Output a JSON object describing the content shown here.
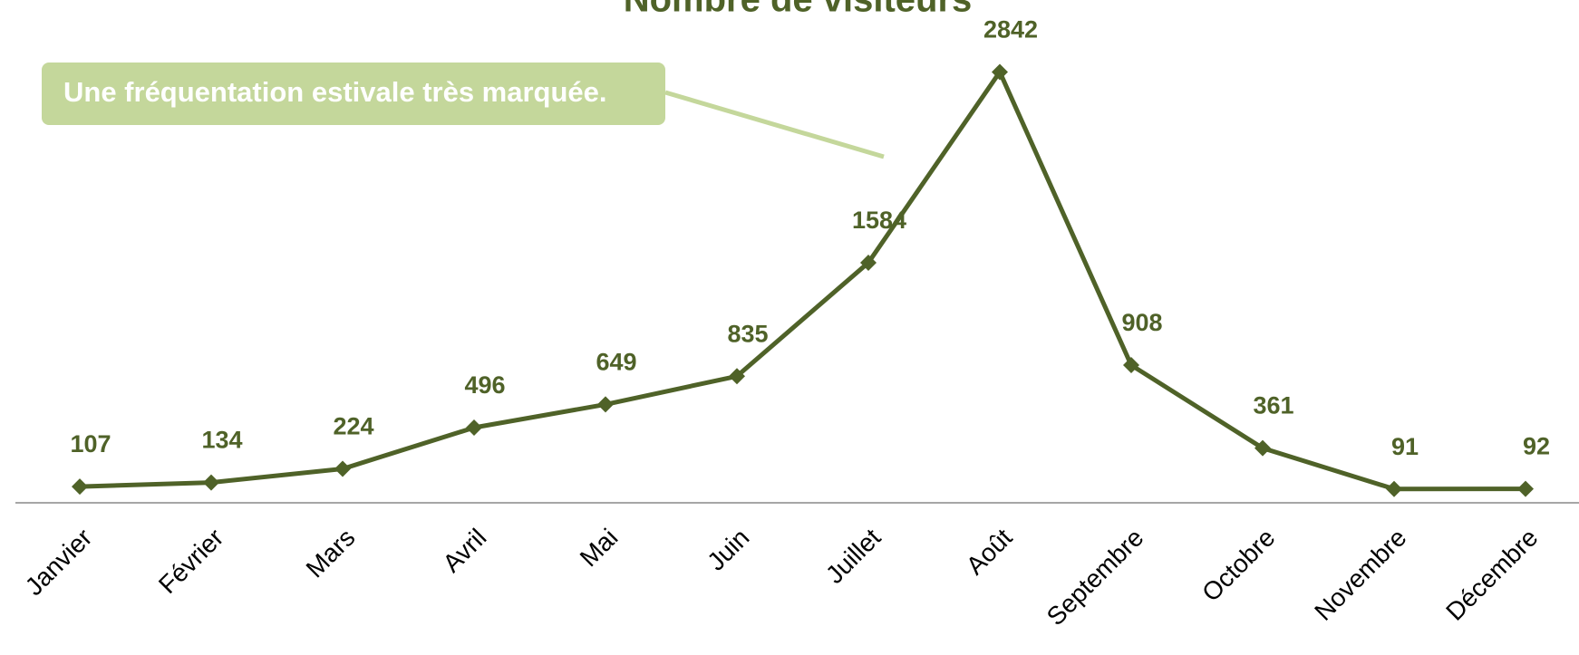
{
  "chart_data": {
    "type": "line",
    "title": "Nombre de visiteurs",
    "annotation": "Une fréquentation estivale très marquée.",
    "categories": [
      "Janvier",
      "Février",
      "Mars",
      "Avril",
      "Mai",
      "Juin",
      "Juillet",
      "Août",
      "Septembre",
      "Octobre",
      "Novembre",
      "Décembre"
    ],
    "values": [
      107,
      134,
      224,
      496,
      649,
      835,
      1584,
      2842,
      908,
      361,
      91,
      92
    ],
    "color": "#4f6228",
    "ylim": [
      0,
      3000
    ],
    "grid": false
  }
}
